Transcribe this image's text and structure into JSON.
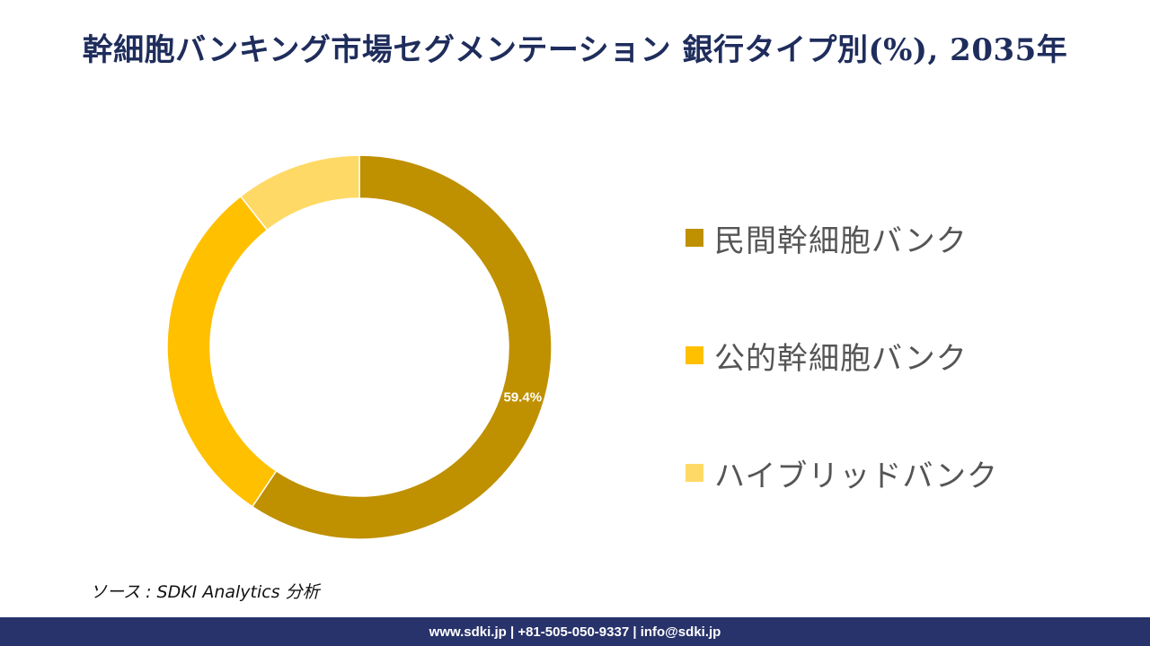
{
  "title": "幹細胞バンキング市場セグメンテーション 銀行タイプ別(%), 2035年",
  "chart_data": {
    "type": "pie",
    "style": "donut",
    "categories": [
      "民間幹細胞バンク",
      "公的幹細胞バンク",
      "ハイブリッドバンク"
    ],
    "values": [
      59.4,
      30.0,
      10.6
    ],
    "colors": [
      "#bf9000",
      "#ffc000",
      "#ffd966"
    ],
    "data_labels": [
      "59.4%",
      "",
      ""
    ],
    "legend_position": "right",
    "start_angle_deg": 0,
    "direction": "clockwise"
  },
  "source": "ソース : SDKI Analytics  分析",
  "footer": {
    "contact": "www.sdki.jp | +81-505-050-9337 | info@sdki.jp"
  }
}
